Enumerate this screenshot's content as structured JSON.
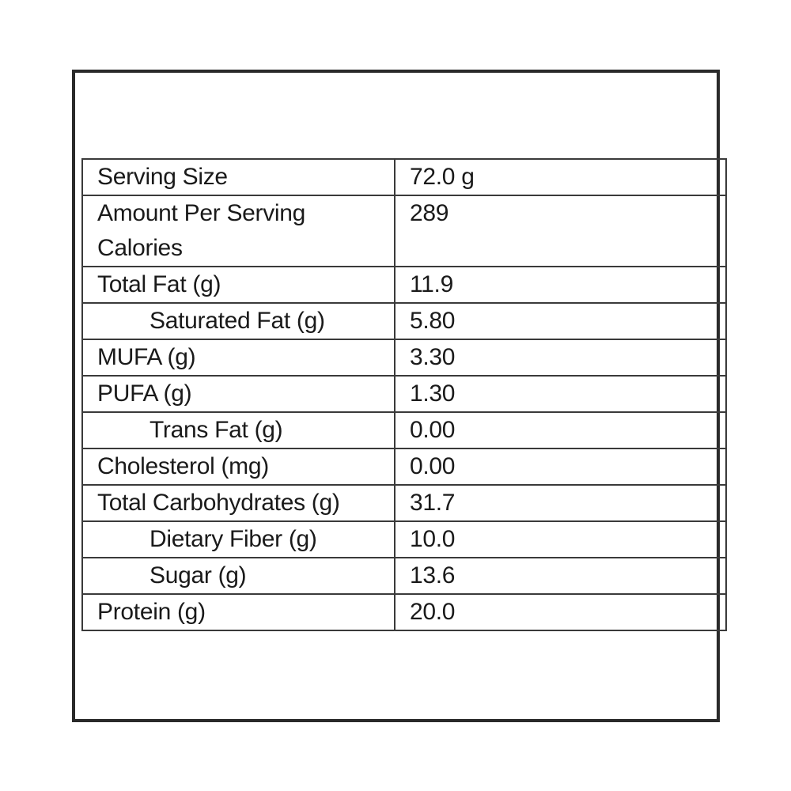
{
  "nutrition": {
    "rows": [
      {
        "label": "Serving Size",
        "value": "72.0 g"
      },
      {
        "label": "Amount Per Serving",
        "label2": "Calories",
        "value": "289"
      },
      {
        "label": "Total Fat (g)",
        "value": "11.9"
      },
      {
        "label": "Saturated Fat (g)",
        "value": "5.80"
      },
      {
        "label": "MUFA (g)",
        "value": "3.30"
      },
      {
        "label": "PUFA (g)",
        "value": "1.30"
      },
      {
        "label": "Trans Fat (g)",
        "value": "0.00"
      },
      {
        "label": "Cholesterol (mg)",
        "value": "0.00"
      },
      {
        "label": "Total Carbohydrates (g)",
        "value": "31.7"
      },
      {
        "label": "Dietary Fiber (g)",
        "value": "10.0"
      },
      {
        "label": "Sugar (g)",
        "value": "13.6"
      },
      {
        "label": "Protein (g)",
        "value": "20.0"
      }
    ]
  },
  "colors": {
    "border": "#3a3a3a",
    "frame": "#2a2a2a",
    "text": "#1a1a1a",
    "background": "#ffffff"
  }
}
